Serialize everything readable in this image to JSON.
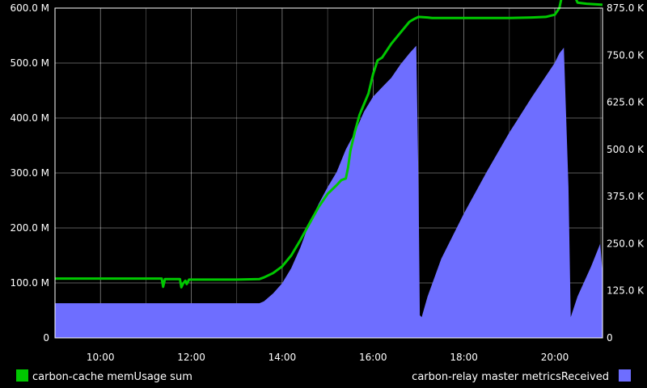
{
  "chart_data": {
    "type": "area",
    "xlabel": "",
    "x_ticks": [
      "10:00",
      "12:00",
      "14:00",
      "16:00",
      "18:00",
      "20:00"
    ],
    "x_tick_hours": [
      10,
      12,
      14,
      16,
      18,
      20
    ],
    "x_range_hours": [
      9.0,
      21.05
    ],
    "left_axis": {
      "ylim": [
        0,
        600000000
      ],
      "ticks": [
        {
          "value": 0,
          "label": "0"
        },
        {
          "value": 100000000,
          "label": "100.0 M"
        },
        {
          "value": 200000000,
          "label": "200.0 M"
        },
        {
          "value": 300000000,
          "label": "300.0 M"
        },
        {
          "value": 400000000,
          "label": "400.0 M"
        },
        {
          "value": 500000000,
          "label": "500.0 M"
        },
        {
          "value": 600000000,
          "label": "600.0 M"
        }
      ]
    },
    "right_axis": {
      "ylim": [
        0,
        875000
      ],
      "ticks": [
        {
          "value": 0,
          "label": "0"
        },
        {
          "value": 125000,
          "label": "125.0 K"
        },
        {
          "value": 250000,
          "label": "250.0 K"
        },
        {
          "value": 375000,
          "label": "375.0 K"
        },
        {
          "value": 500000,
          "label": "500.0 K"
        },
        {
          "value": 625000,
          "label": "625.0 K"
        },
        {
          "value": 750000,
          "label": "750.0 K"
        },
        {
          "value": 875000,
          "label": "875.0 K"
        }
      ]
    },
    "grid": true,
    "series": [
      {
        "name": "carbon-cache memUsage sum",
        "type": "line",
        "axis": "left",
        "color": "#00c800",
        "x_hours": [
          9.0,
          10.0,
          11.0,
          11.35,
          11.38,
          11.42,
          11.45,
          11.75,
          11.78,
          11.82,
          11.87,
          11.9,
          11.95,
          12.0,
          13.0,
          13.5,
          13.6,
          13.8,
          14.0,
          14.2,
          14.4,
          14.6,
          14.8,
          15.0,
          15.2,
          15.3,
          15.4,
          15.45,
          15.5,
          15.6,
          15.7,
          15.8,
          15.9,
          16.0,
          16.1,
          16.2,
          16.4,
          16.6,
          16.8,
          16.9,
          17.0,
          17.2,
          17.3,
          18.0,
          19.0,
          19.5,
          19.8,
          20.0,
          20.1,
          20.2,
          20.3,
          20.5,
          20.7,
          21.05
        ],
        "values": [
          108000000,
          108000000,
          108000000,
          108000000,
          93000000,
          107000000,
          107000000,
          107000000,
          92000000,
          99000000,
          104000000,
          98000000,
          106000000,
          106000000,
          106000000,
          107000000,
          110000000,
          118000000,
          130000000,
          150000000,
          178000000,
          208000000,
          238000000,
          262000000,
          278000000,
          287000000,
          290000000,
          310000000,
          340000000,
          375000000,
          405000000,
          425000000,
          445000000,
          480000000,
          505000000,
          510000000,
          535000000,
          555000000,
          575000000,
          580000000,
          584000000,
          583000000,
          582000000,
          582000000,
          582000000,
          583000000,
          584000000,
          588000000,
          600000000,
          638000000,
          648000000,
          610000000,
          608000000,
          606000000
        ]
      },
      {
        "name": "carbon-relay master metricsReceived",
        "type": "area",
        "axis": "right",
        "color": "#6e6eff",
        "x_hours": [
          9.0,
          10.0,
          11.0,
          12.0,
          13.0,
          13.5,
          13.6,
          13.8,
          14.0,
          14.2,
          14.4,
          14.6,
          14.8,
          15.0,
          15.2,
          15.4,
          15.6,
          15.8,
          16.0,
          16.2,
          16.4,
          16.6,
          16.8,
          16.95,
          17.0,
          17.03,
          17.07,
          17.2,
          17.5,
          18.0,
          18.5,
          19.0,
          19.5,
          20.0,
          20.1,
          20.2,
          20.3,
          20.35,
          20.5,
          20.8,
          21.0,
          21.05
        ],
        "values": [
          92000,
          92000,
          92000,
          92000,
          92000,
          92000,
          97000,
          118000,
          145000,
          185000,
          240000,
          305000,
          355000,
          400000,
          440000,
          500000,
          545000,
          600000,
          640000,
          665000,
          690000,
          725000,
          755000,
          775000,
          400000,
          60000,
          55000,
          110000,
          210000,
          330000,
          440000,
          545000,
          640000,
          730000,
          755000,
          770000,
          400000,
          55000,
          110000,
          190000,
          250000,
          170000
        ]
      }
    ],
    "legend": {
      "placement": "bottom"
    }
  }
}
